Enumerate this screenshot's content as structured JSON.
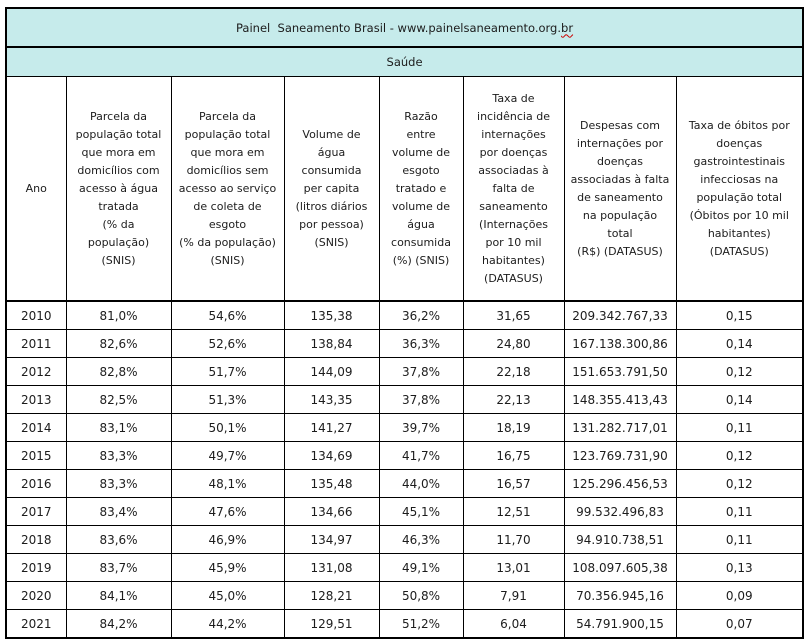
{
  "page": {
    "title_prefix": "Painel  Saneamento Brasil - www.painelsaneamento.org.",
    "title_spellcheck": "br",
    "section_title": "Saúde"
  },
  "colors": {
    "header_bg": "#c6ebeb",
    "border": "#000000",
    "text": "#1c1c1c",
    "spellcheck_underline": "#cc0000"
  },
  "chart_data": {
    "type": "table",
    "title": "Painel Saneamento Brasil - www.painelsaneamento.org.br",
    "subtitle": "Saúde",
    "columns": [
      "Ano",
      "Parcela da\npopulação total\nque mora em\ndomicílios com\nacesso à água\ntratada\n(% da\npopulação)\n(SNIS)",
      "Parcela da\npopulação total\nque mora em\ndomicílios sem\nacesso ao serviço\nde coleta de\nesgoto\n(% da população)\n(SNIS)",
      "Volume de\nágua\nconsumida\nper capita\n(litros diários\npor pessoa)\n(SNIS)",
      "Razão\nentre\nvolume de\nesgoto\ntratado e\nvolume de\nágua\nconsumida\n(%) (SNIS)",
      "Taxa de\nincidência de\ninternações\npor doenças\nassociadas à\nfalta de\nsaneamento\n(Internações\npor 10 mil\nhabitantes)\n(DATASUS)",
      "Despesas com\ninternações por\ndoenças\nassociadas à falta\nde saneamento\nna população\ntotal\n(R$) (DATASUS)",
      "Taxa de óbitos por\ndoenças\ngastrointestinais\ninfecciosas na\npopulação total\n(Óbitos por 10 mil\nhabitantes)\n(DATASUS)"
    ],
    "rows": [
      [
        "2010",
        "81,0%",
        "54,6%",
        "135,38",
        "36,2%",
        "31,65",
        "209.342.767,33",
        "0,15"
      ],
      [
        "2011",
        "82,6%",
        "52,6%",
        "138,84",
        "36,3%",
        "24,80",
        "167.138.300,86",
        "0,14"
      ],
      [
        "2012",
        "82,8%",
        "51,7%",
        "144,09",
        "37,8%",
        "22,18",
        "151.653.791,50",
        "0,12"
      ],
      [
        "2013",
        "82,5%",
        "51,3%",
        "143,35",
        "37,8%",
        "22,13",
        "148.355.413,43",
        "0,14"
      ],
      [
        "2014",
        "83,1%",
        "50,1%",
        "141,27",
        "39,7%",
        "18,19",
        "131.282.717,01",
        "0,11"
      ],
      [
        "2015",
        "83,3%",
        "49,7%",
        "134,69",
        "41,7%",
        "16,75",
        "123.769.731,90",
        "0,12"
      ],
      [
        "2016",
        "83,3%",
        "48,1%",
        "135,48",
        "44,0%",
        "16,57",
        "125.296.456,53",
        "0,12"
      ],
      [
        "2017",
        "83,4%",
        "47,6%",
        "134,66",
        "45,1%",
        "12,51",
        "99.532.496,83",
        "0,11"
      ],
      [
        "2018",
        "83,6%",
        "46,9%",
        "134,97",
        "46,3%",
        "11,70",
        "94.910.738,51",
        "0,11"
      ],
      [
        "2019",
        "83,7%",
        "45,9%",
        "131,08",
        "49,1%",
        "13,01",
        "108.097.605,38",
        "0,13"
      ],
      [
        "2020",
        "84,1%",
        "45,0%",
        "128,21",
        "50,8%",
        "7,91",
        "70.356.945,16",
        "0,09"
      ],
      [
        "2021",
        "84,2%",
        "44,2%",
        "129,51",
        "51,2%",
        "6,04",
        "54.791.900,15",
        "0,07"
      ]
    ]
  }
}
